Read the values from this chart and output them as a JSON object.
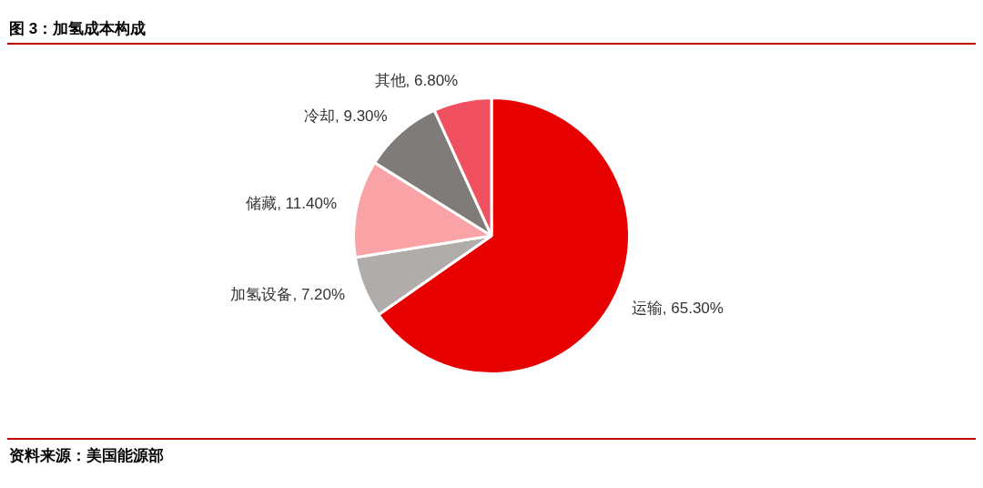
{
  "chart_data": {
    "type": "pie",
    "title": "图 3：加氢成本构成",
    "categories": [
      "运输",
      "加氢设备",
      "储藏",
      "冷却",
      "其他"
    ],
    "values": [
      65.3,
      7.2,
      11.4,
      9.3,
      6.8
    ],
    "value_labels": [
      "65.30%",
      "7.20%",
      "11.40%",
      "9.30%",
      "6.80%"
    ],
    "colors": [
      "#e60000",
      "#b0aca9",
      "#f9a3a6",
      "#7f7b78",
      "#f0505f"
    ],
    "legend": false,
    "annotations": [
      "资料来源：美国能源部"
    ]
  }
}
